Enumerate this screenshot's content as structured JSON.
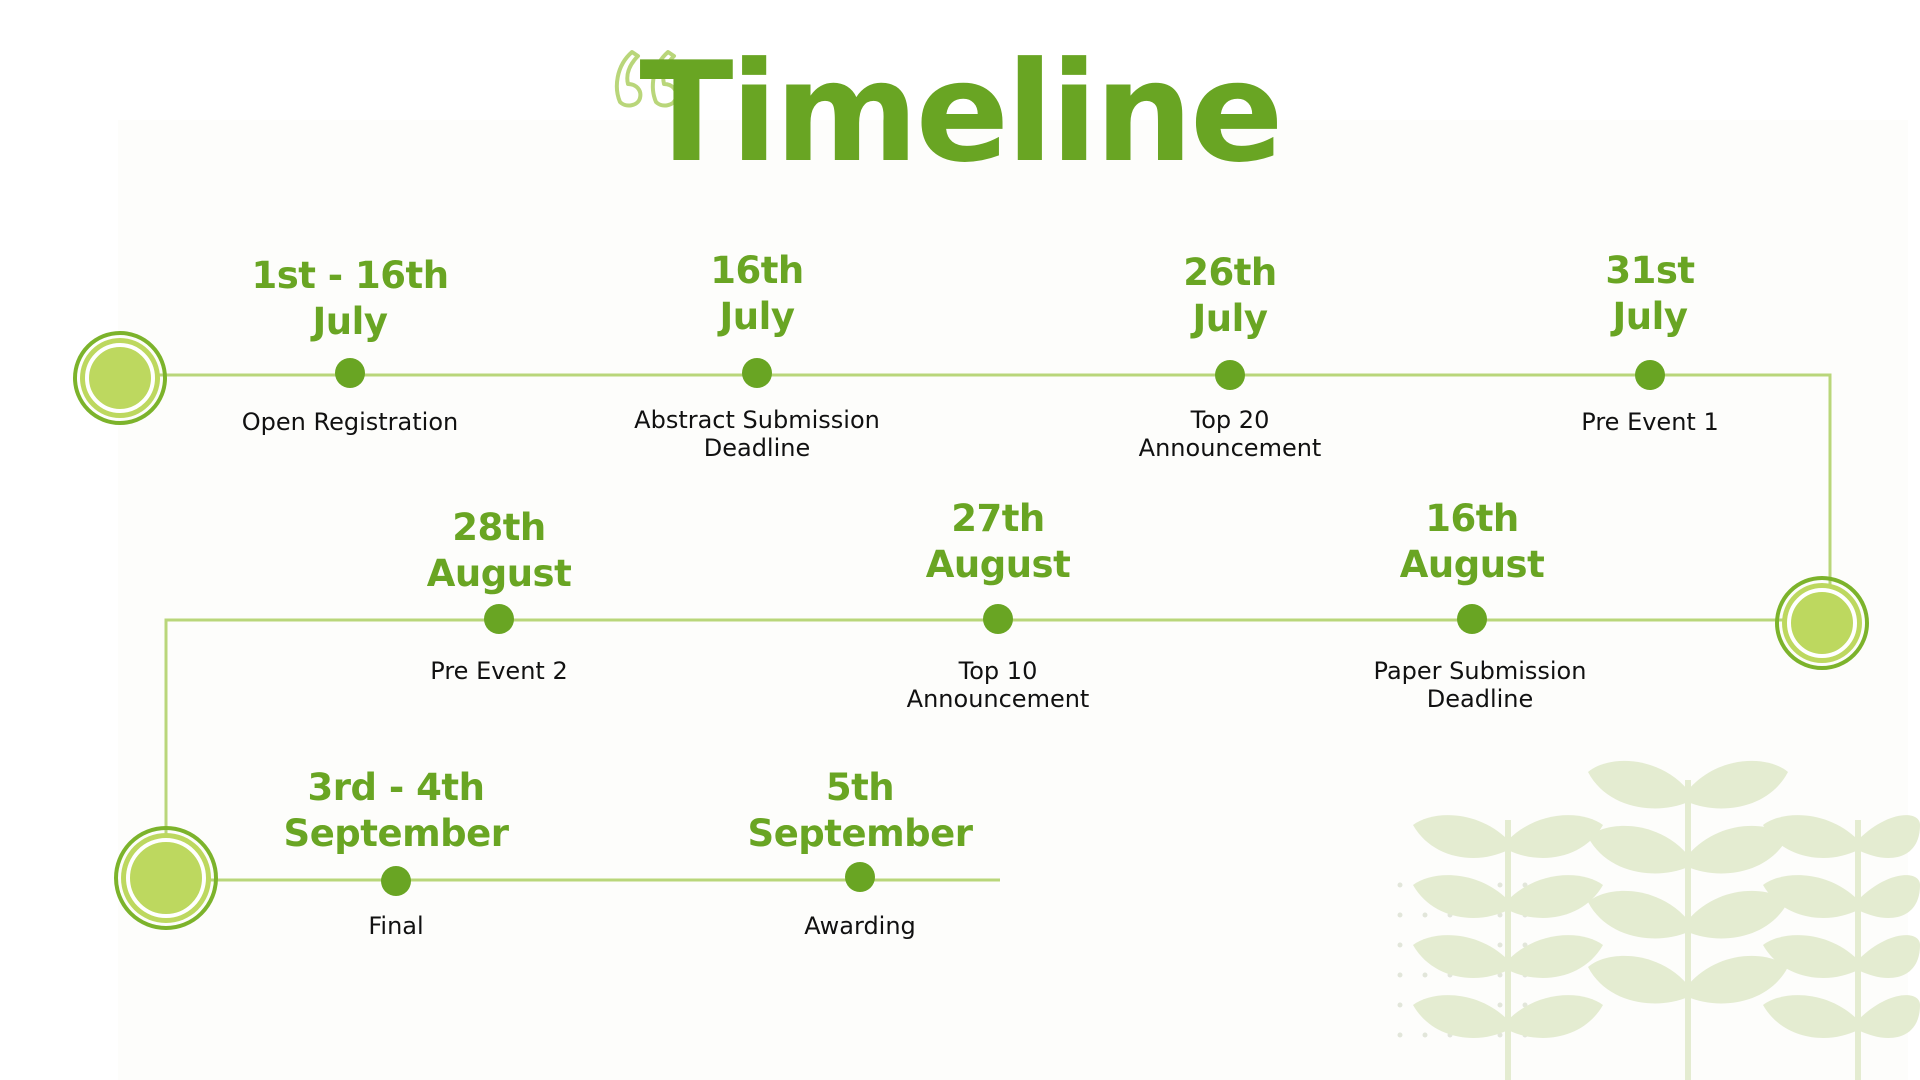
{
  "title": "Timeline",
  "colors": {
    "accent": "#69a523",
    "line": "#b9d67a",
    "big_node_fill": "#bdd85f",
    "big_node_ring": "#7cb32b",
    "leaf": "#e3ebcf"
  },
  "events": [
    {
      "date_line1": "1st - 16th",
      "date_line2": "July",
      "label_line1": "Open Registration",
      "label_line2": ""
    },
    {
      "date_line1": "16th",
      "date_line2": "July",
      "label_line1": "Abstract Submission",
      "label_line2": "Deadline"
    },
    {
      "date_line1": "26th",
      "date_line2": "July",
      "label_line1": "Top 20",
      "label_line2": "Announcement"
    },
    {
      "date_line1": "31st",
      "date_line2": "July",
      "label_line1": "Pre Event 1",
      "label_line2": ""
    },
    {
      "date_line1": "16th",
      "date_line2": "August",
      "label_line1": "Paper Submission",
      "label_line2": "Deadline"
    },
    {
      "date_line1": "27th",
      "date_line2": "August",
      "label_line1": "Top 10",
      "label_line2": "Announcement"
    },
    {
      "date_line1": "28th",
      "date_line2": "August",
      "label_line1": "Pre Event 2",
      "label_line2": ""
    },
    {
      "date_line1": "3rd - 4th",
      "date_line2": "September",
      "label_line1": "Final",
      "label_line2": ""
    },
    {
      "date_line1": "5th",
      "date_line2": "September",
      "label_line1": "Awarding",
      "label_line2": ""
    }
  ]
}
